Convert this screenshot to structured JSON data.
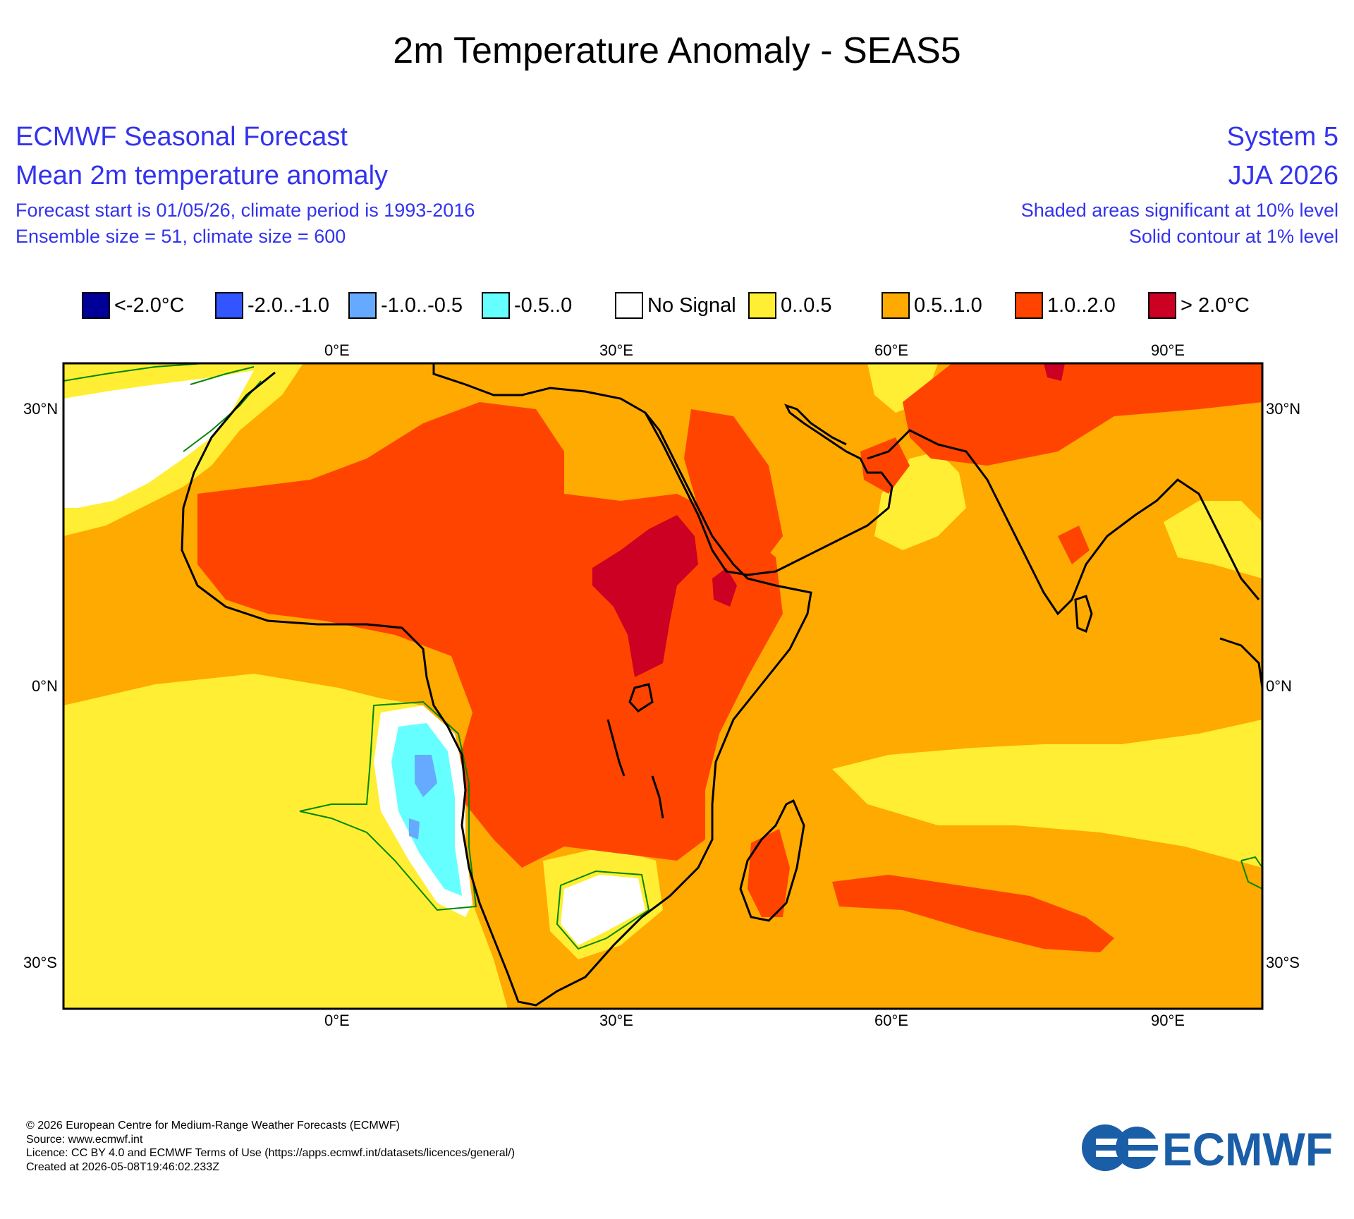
{
  "title": "2m Temperature Anomaly - SEAS5",
  "header_left": {
    "line1": "ECMWF Seasonal Forecast",
    "line2": "Mean 2m temperature anomaly",
    "line3": "Forecast start is 01/05/26, climate period is 1993-2016",
    "line4": "Ensemble size = 51, climate size = 600"
  },
  "header_right": {
    "line1": "System 5",
    "line2": "JJA 2026",
    "line3": "Shaded areas significant at 10% level",
    "line4": "Solid contour at 1% level"
  },
  "legend": [
    {
      "label": "<-2.0°C",
      "color": "#000099"
    },
    {
      "label": "-2.0..-1.0",
      "color": "#3355ff"
    },
    {
      "label": "-1.0..-0.5",
      "color": "#66aaff"
    },
    {
      "label": "-0.5..0",
      "color": "#66ffff"
    },
    {
      "label": "No Signal",
      "color": "#ffffff"
    },
    {
      "label": "0..0.5",
      "color": "#ffee33"
    },
    {
      "label": "0.5..1.0",
      "color": "#ffaa00"
    },
    {
      "label": "1.0..2.0",
      "color": "#ff4400"
    },
    {
      "label": "> 2.0°C",
      "color": "#cc0022"
    }
  ],
  "axes": {
    "lon_labels": [
      "0°E",
      "30°E",
      "60°E",
      "90°E"
    ],
    "lat_labels": [
      "30°N",
      "0°N",
      "30°S"
    ]
  },
  "footer": {
    "line1": "© 2026 European Centre for Medium-Range Weather Forecasts (ECMWF)",
    "line2": "Source: www.ecmwf.int",
    "line3": "Licence: CC BY 4.0 and ECMWF Terms of Use (https://apps.ecmwf.int/datasets/licences/general/)",
    "line4": "Created at 2026-05-08T19:46:02.233Z"
  },
  "logo_text": "ECMWF",
  "logo_color": "#1a5ea8"
}
